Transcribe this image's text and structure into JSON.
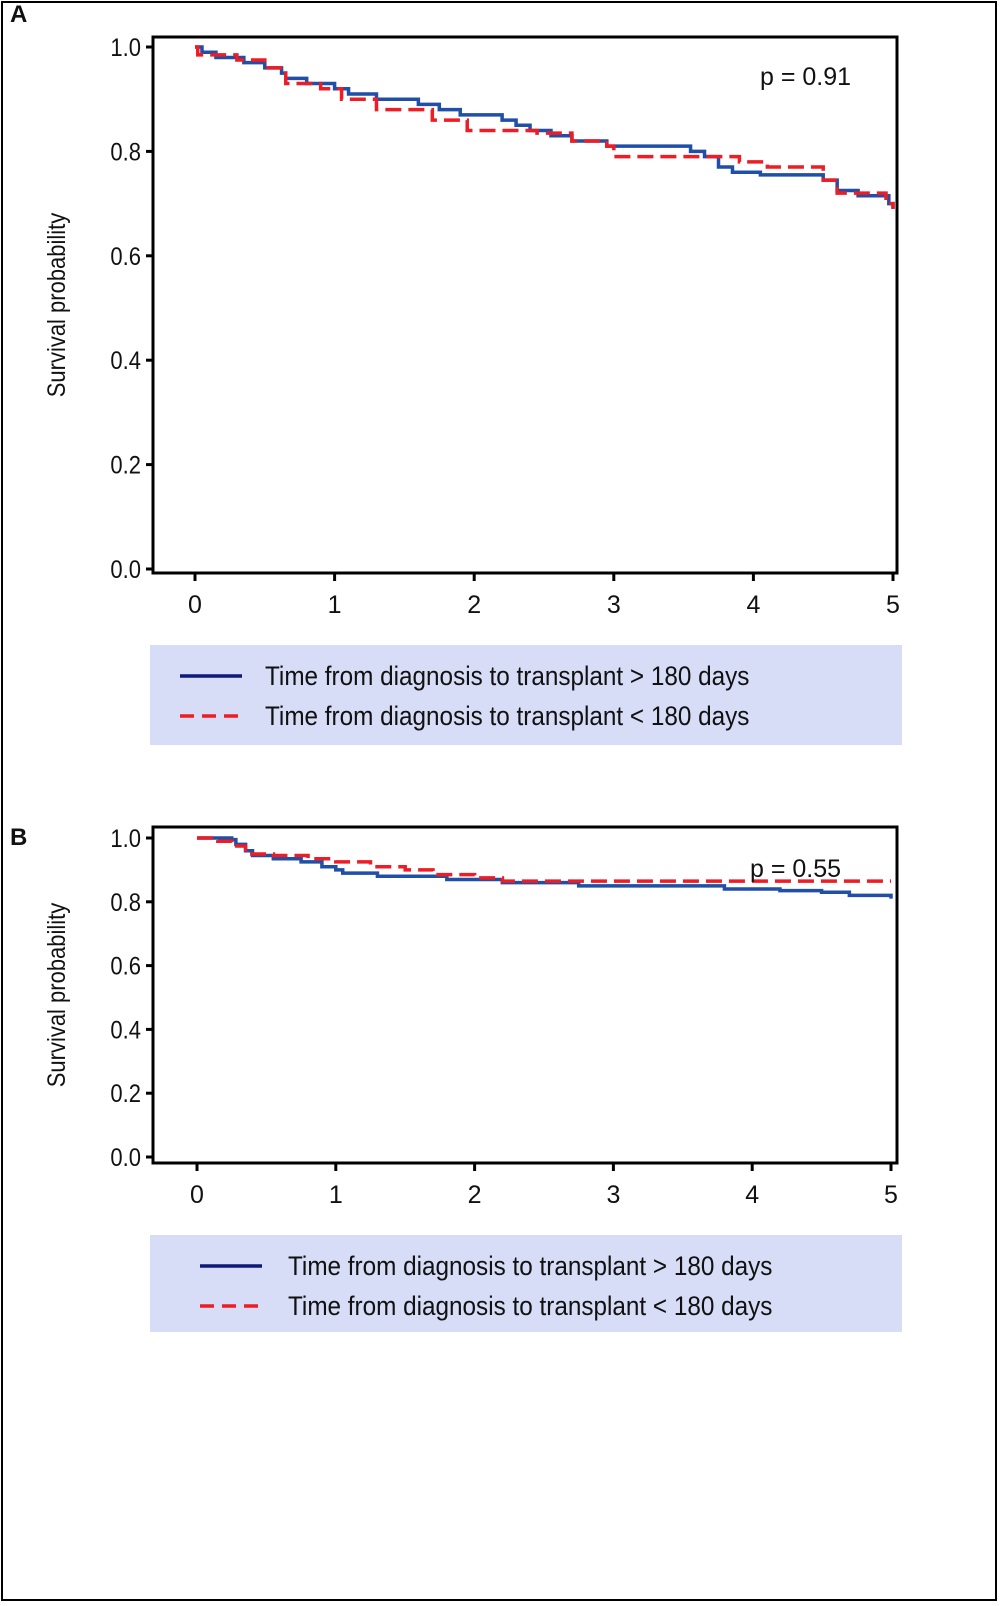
{
  "chart_data": [
    {
      "type": "line",
      "panel_label": "A",
      "ylabel": "Survival probability",
      "xlabel": "",
      "xlim": [
        0,
        5
      ],
      "ylim": [
        0,
        1
      ],
      "xticks": [
        "0",
        "1",
        "2",
        "3",
        "4",
        "5"
      ],
      "yticks": [
        "0.0",
        "0.2",
        "0.4",
        "0.6",
        "0.8",
        "1.0"
      ],
      "annotation": "p = 0.91",
      "grid": false,
      "legend_placement": "below",
      "legend_background": "#d7dcf7",
      "series": [
        {
          "name": "Time from diagnosis to transplant > 180 days",
          "style": "solid",
          "color": "#1f4fa6",
          "legend_color": "#0d1a7a",
          "points": [
            [
              0,
              1
            ],
            [
              0.05,
              0.99
            ],
            [
              0.15,
              0.98
            ],
            [
              0.35,
              0.97
            ],
            [
              0.5,
              0.96
            ],
            [
              0.62,
              0.95
            ],
            [
              0.65,
              0.94
            ],
            [
              0.8,
              0.93
            ],
            [
              1.0,
              0.92
            ],
            [
              1.1,
              0.91
            ],
            [
              1.3,
              0.9
            ],
            [
              1.6,
              0.89
            ],
            [
              1.75,
              0.88
            ],
            [
              1.9,
              0.87
            ],
            [
              2.2,
              0.86
            ],
            [
              2.3,
              0.85
            ],
            [
              2.4,
              0.84
            ],
            [
              2.55,
              0.83
            ],
            [
              2.7,
              0.82
            ],
            [
              2.95,
              0.81
            ],
            [
              3.55,
              0.8
            ],
            [
              3.65,
              0.79
            ],
            [
              3.75,
              0.77
            ],
            [
              3.85,
              0.76
            ],
            [
              4.05,
              0.755
            ],
            [
              4.5,
              0.745
            ],
            [
              4.6,
              0.725
            ],
            [
              4.75,
              0.715
            ],
            [
              4.97,
              0.7
            ],
            [
              5,
              0.69
            ]
          ]
        },
        {
          "name": "Time from diagnosis to transplant < 180 days",
          "style": "dashed",
          "color": "#ee1c24",
          "legend_color": "#ee1c24",
          "points": [
            [
              0,
              1
            ],
            [
              0.02,
              0.985
            ],
            [
              0.3,
              0.975
            ],
            [
              0.5,
              0.96
            ],
            [
              0.65,
              0.93
            ],
            [
              0.9,
              0.92
            ],
            [
              1.05,
              0.9
            ],
            [
              1.3,
              0.88
            ],
            [
              1.7,
              0.86
            ],
            [
              1.95,
              0.84
            ],
            [
              2.45,
              0.835
            ],
            [
              2.7,
              0.82
            ],
            [
              2.95,
              0.81
            ],
            [
              3.0,
              0.79
            ],
            [
              3.9,
              0.78
            ],
            [
              4.1,
              0.77
            ],
            [
              4.5,
              0.745
            ],
            [
              4.6,
              0.72
            ],
            [
              4.95,
              0.7
            ],
            [
              5,
              0.69
            ]
          ]
        }
      ]
    },
    {
      "type": "line",
      "panel_label": "B",
      "ylabel": "Survival probability",
      "xlabel": "",
      "xlim": [
        0,
        5
      ],
      "ylim": [
        0,
        1
      ],
      "xticks": [
        "0",
        "1",
        "2",
        "3",
        "4",
        "5"
      ],
      "yticks": [
        "0.0",
        "0.2",
        "0.4",
        "0.6",
        "0.8",
        "1.0"
      ],
      "annotation": "p = 0.55",
      "grid": false,
      "legend_placement": "below",
      "legend_background": "#d7dcf7",
      "series": [
        {
          "name": "Time from diagnosis to transplant > 180 days",
          "style": "solid",
          "color": "#1f4fa6",
          "legend_color": "#0d1a7a",
          "points": [
            [
              0,
              1
            ],
            [
              0.25,
              0.995
            ],
            [
              0.28,
              0.98
            ],
            [
              0.35,
              0.96
            ],
            [
              0.4,
              0.945
            ],
            [
              0.55,
              0.935
            ],
            [
              0.75,
              0.925
            ],
            [
              0.9,
              0.91
            ],
            [
              1.0,
              0.9
            ],
            [
              1.05,
              0.89
            ],
            [
              1.3,
              0.88
            ],
            [
              1.8,
              0.87
            ],
            [
              2.2,
              0.86
            ],
            [
              2.75,
              0.85
            ],
            [
              3.6,
              0.85
            ],
            [
              3.8,
              0.84
            ],
            [
              4.2,
              0.835
            ],
            [
              4.5,
              0.83
            ],
            [
              4.7,
              0.82
            ],
            [
              5,
              0.81
            ]
          ]
        },
        {
          "name": "Time from diagnosis to transplant < 180 days",
          "style": "dashed",
          "color": "#ee1c24",
          "legend_color": "#ee1c24",
          "points": [
            [
              0,
              1
            ],
            [
              0.15,
              0.99
            ],
            [
              0.25,
              0.975
            ],
            [
              0.35,
              0.95
            ],
            [
              0.55,
              0.945
            ],
            [
              0.8,
              0.935
            ],
            [
              1.0,
              0.925
            ],
            [
              1.25,
              0.91
            ],
            [
              1.5,
              0.9
            ],
            [
              1.7,
              0.885
            ],
            [
              2.0,
              0.875
            ],
            [
              2.2,
              0.865
            ],
            [
              5,
              0.865
            ]
          ]
        }
      ]
    }
  ]
}
